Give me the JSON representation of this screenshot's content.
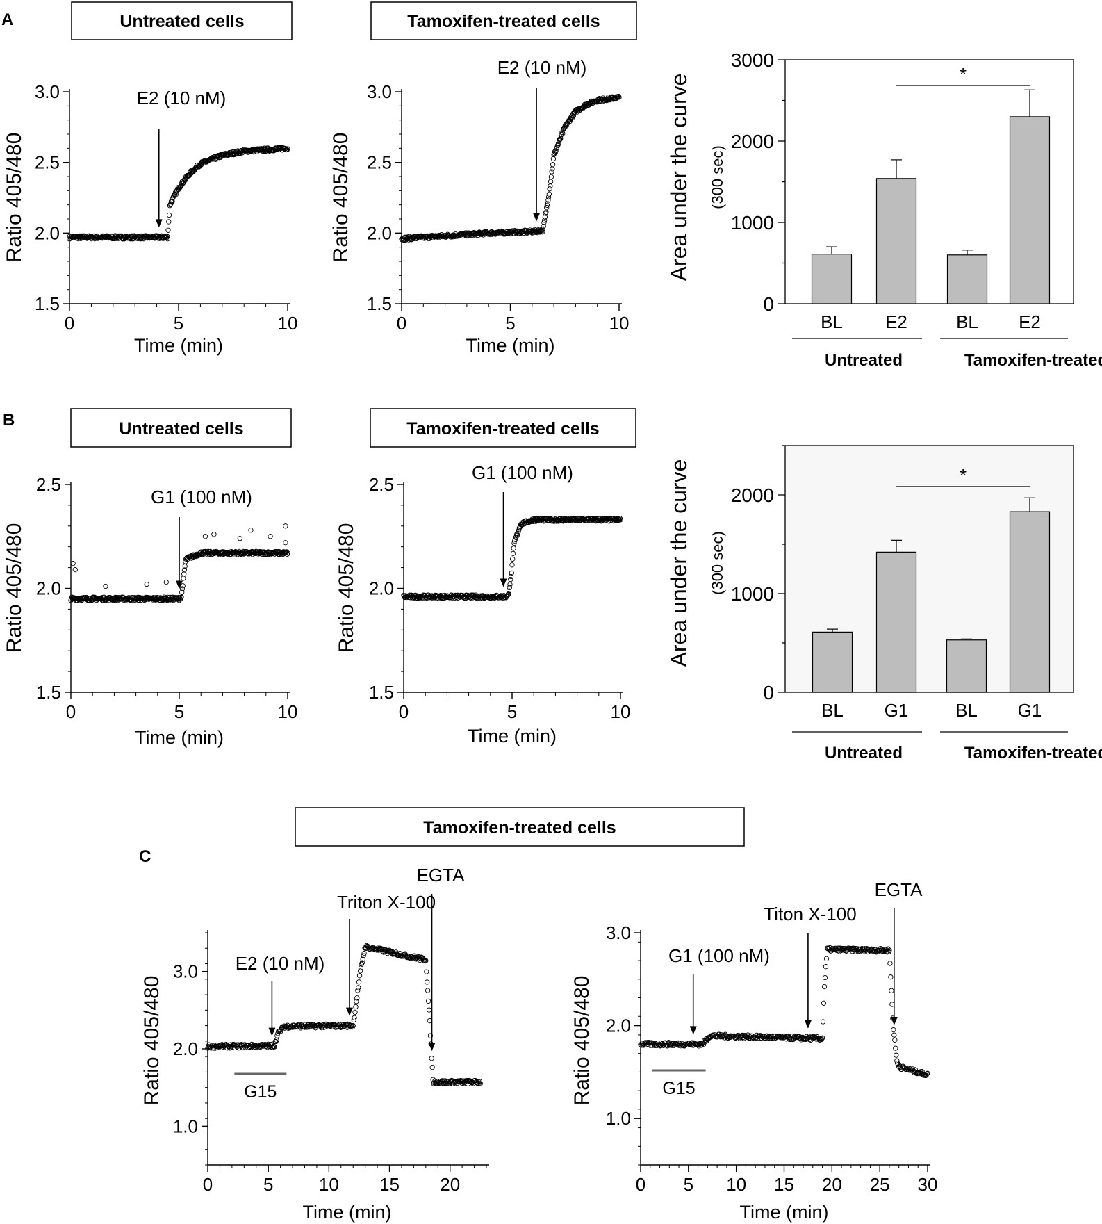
{
  "colors": {
    "bar": "#bdbdbd",
    "ink": "#000000",
    "grey_line": "#666666",
    "panel_bg": "#f7f7f7"
  },
  "panel_labels": {
    "a": "A",
    "b": "B",
    "c": "C"
  },
  "boxes": {
    "a_left": "Untreated cells",
    "a_mid": "Tamoxifen-treated cells",
    "b_left": "Untreated cells",
    "b_mid": "Tamoxifen-treated cells",
    "c": "Tamoxifen-treated cells"
  },
  "common": {
    "time_label": "Time  (min)",
    "ratio_label": "Ratio  405/480",
    "auc_label": "Area under the curve",
    "auc_sub": "(300 sec)",
    "group_untreated": "Untreated",
    "group_tamoxifen": "Tamoxifen-treated",
    "sig": "*",
    "g15": "G15"
  },
  "chart_data": [
    {
      "id": "a1",
      "type": "scatter",
      "title": "Untreated cells",
      "xlabel": "Time  (min)",
      "ylabel": "Ratio  405/480",
      "xlim": [
        0,
        10
      ],
      "ylim": [
        1.5,
        3.0
      ],
      "xticks": [
        0,
        5,
        10
      ],
      "yticks": [
        1.5,
        2.0,
        2.5,
        3.0
      ],
      "ytick_labels": [
        "1.5",
        "2.0",
        "2.5",
        "3.0"
      ],
      "annotations": [
        {
          "text": "E2 (10 nM)",
          "x": 4.1
        }
      ],
      "series": [
        {
          "name": "ratio",
          "description": "baseline ~1.97 until 4.5 min, step to ~2.2 then rise to plateau ~2.6",
          "x": [
            0,
            1,
            2,
            3,
            4,
            4.5,
            4.6,
            5,
            5.5,
            6,
            7,
            8,
            9,
            10
          ],
          "y": [
            1.97,
            1.97,
            1.97,
            1.97,
            1.97,
            1.97,
            2.2,
            2.32,
            2.42,
            2.49,
            2.55,
            2.58,
            2.59,
            2.6
          ]
        }
      ]
    },
    {
      "id": "a2",
      "type": "scatter",
      "title": "Tamoxifen-treated cells",
      "xlabel": "Time  (min)",
      "ylabel": "Ratio  405/480",
      "xlim": [
        0,
        10
      ],
      "ylim": [
        1.5,
        3.0
      ],
      "xticks": [
        0,
        5,
        10
      ],
      "yticks": [
        1.5,
        2.0,
        2.5,
        3.0
      ],
      "ytick_labels": [
        "1.5",
        "2.0",
        "2.5",
        "3.0"
      ],
      "annotations": [
        {
          "text": "E2 (10 nM)",
          "x": 6.2
        }
      ],
      "series": [
        {
          "name": "ratio",
          "description": "baseline ~1.96 rising slowly to ~2.02 at 6.5 min, then steep rise to ~2.96",
          "x": [
            0,
            2,
            4,
            6,
            6.5,
            6.8,
            7,
            7.5,
            8,
            8.5,
            9,
            10
          ],
          "y": [
            1.96,
            1.98,
            2.0,
            2.01,
            2.02,
            2.3,
            2.55,
            2.75,
            2.86,
            2.91,
            2.94,
            2.96
          ]
        }
      ]
    },
    {
      "id": "a3",
      "type": "bar",
      "ylabel": "Area under the curve",
      "ylabel_sub": "(300 sec)",
      "ylim": [
        0,
        3000
      ],
      "yticks": [
        0,
        1000,
        2000,
        3000
      ],
      "ytick_labels": [
        "0",
        "1000",
        "2000",
        "3000"
      ],
      "categories": [
        "BL",
        "E2",
        "BL",
        "E2"
      ],
      "groups": [
        "Untreated",
        "Tamoxifen-treated"
      ],
      "values": [
        610,
        1540,
        600,
        2300
      ],
      "errors": [
        90,
        230,
        60,
        330
      ],
      "significance": {
        "from": 1,
        "to": 3,
        "label": "*"
      }
    },
    {
      "id": "b1",
      "type": "scatter",
      "title": "Untreated cells",
      "xlabel": "Time  (min)",
      "ylabel": "Ratio  405/480",
      "xlim": [
        0,
        10
      ],
      "ylim": [
        1.5,
        2.5
      ],
      "xticks": [
        0,
        5,
        10
      ],
      "yticks": [
        1.5,
        2.0,
        2.5
      ],
      "ytick_labels": [
        "1.5",
        "2.0",
        "2.5"
      ],
      "annotations": [
        {
          "text": "G1 (100 nM)",
          "x": 5.0
        }
      ],
      "series": [
        {
          "name": "ratio",
          "description": "baseline ~1.95 until 5.1 min, step to plateau ~2.17 with scattered high outliers",
          "x": [
            0,
            2,
            4,
            5,
            5.1,
            5.3,
            6,
            8,
            10
          ],
          "y": [
            1.95,
            1.95,
            1.95,
            1.95,
            1.96,
            2.14,
            2.17,
            2.17,
            2.17
          ]
        }
      ]
    },
    {
      "id": "b2",
      "type": "scatter",
      "title": "Tamoxifen-treated cells",
      "xlabel": "Time  (min)",
      "ylabel": "Ratio  405/480",
      "xlim": [
        0,
        10
      ],
      "ylim": [
        1.5,
        2.5
      ],
      "xticks": [
        0,
        5,
        10
      ],
      "yticks": [
        1.5,
        2.0,
        2.5
      ],
      "ytick_labels": [
        "1.5",
        "2.0",
        "2.5"
      ],
      "annotations": [
        {
          "text": "G1 (100 nM)",
          "x": 4.6
        }
      ],
      "series": [
        {
          "name": "ratio",
          "description": "baseline ~1.96 until 4.9 min, rapid rise to plateau ~2.33",
          "x": [
            0,
            2,
            4,
            4.8,
            4.95,
            5.1,
            5.4,
            6,
            8,
            10
          ],
          "y": [
            1.96,
            1.96,
            1.96,
            1.96,
            2.05,
            2.22,
            2.31,
            2.33,
            2.33,
            2.33
          ]
        }
      ]
    },
    {
      "id": "b3",
      "type": "bar",
      "ylabel": "Area under the curve",
      "ylabel_sub": "(300 sec)",
      "ylim": [
        0,
        2500
      ],
      "yticks": [
        0,
        1000,
        2000
      ],
      "ytick_labels": [
        "0",
        "1000",
        "2000"
      ],
      "categories": [
        "BL",
        "G1",
        "BL",
        "G1"
      ],
      "groups": [
        "Untreated",
        "Tamoxifen-treated"
      ],
      "values": [
        610,
        1420,
        530,
        1830
      ],
      "errors": [
        30,
        120,
        10,
        140
      ],
      "significance": {
        "from": 1,
        "to": 3,
        "label": "*"
      }
    },
    {
      "id": "c1",
      "type": "scatter",
      "title": "Tamoxifen-treated cells",
      "xlabel": "Time  (min)",
      "ylabel": "Ratio  405/480",
      "xlim": [
        0,
        23
      ],
      "ylim": [
        0.5,
        3.5
      ],
      "xticks": [
        0,
        5,
        10,
        15,
        20
      ],
      "yticks": [
        1.0,
        2.0,
        3.0
      ],
      "ytick_labels": [
        "1.0",
        "2.0",
        "3.0"
      ],
      "annotations": [
        {
          "text": "E2 (10 nM)",
          "x": 5.3
        },
        {
          "text": "Triton X-100",
          "x": 11.7
        },
        {
          "text": "EGTA",
          "x": 18.5
        }
      ],
      "bar_label": {
        "text": "G15",
        "from": 2.2,
        "to": 6.5
      },
      "series": [
        {
          "name": "ratio",
          "description": "baseline ~2.03, step to ~2.29 after E2, jump to ~3.32 after Triton, drop to ~1.57 after EGTA",
          "x": [
            0,
            5.5,
            5.8,
            6.3,
            12,
            12.6,
            13,
            15,
            18,
            18.3,
            18.6,
            22.5
          ],
          "y": [
            2.03,
            2.04,
            2.2,
            2.29,
            2.3,
            3.0,
            3.32,
            3.25,
            3.15,
            2.4,
            1.57,
            1.57
          ]
        }
      ]
    },
    {
      "id": "c2",
      "type": "scatter",
      "title": "Tamoxifen-treated cells",
      "xlabel": "Time  (min)",
      "ylabel": "Ratio  405/480",
      "xlim": [
        0,
        30
      ],
      "ylim": [
        0.5,
        3.0
      ],
      "xticks": [
        0,
        5,
        10,
        15,
        20,
        25,
        30
      ],
      "yticks": [
        1.0,
        2.0,
        3.0
      ],
      "ytick_labels": [
        "1.0",
        "2.0",
        "3.0"
      ],
      "annotations": [
        {
          "text": "G1 (100 nM)",
          "x": 5.5
        },
        {
          "text": "Titon X-100",
          "x": 17.5
        },
        {
          "text": "EGTA",
          "x": 26.5
        }
      ],
      "bar_label": {
        "text": "G15",
        "from": 1.2,
        "to": 6.8
      },
      "series": [
        {
          "name": "ratio",
          "description": "baseline ~1.8, step to ~1.88 after G1, jump to ~2.82 after Triton, fall to ~1.47 after EGTA",
          "x": [
            0,
            6.5,
            7.2,
            19,
            19.2,
            19.5,
            26,
            26.4,
            26.8,
            27.2,
            30
          ],
          "y": [
            1.8,
            1.8,
            1.89,
            1.86,
            2.4,
            2.82,
            2.81,
            2.0,
            1.6,
            1.55,
            1.47
          ]
        }
      ]
    }
  ]
}
